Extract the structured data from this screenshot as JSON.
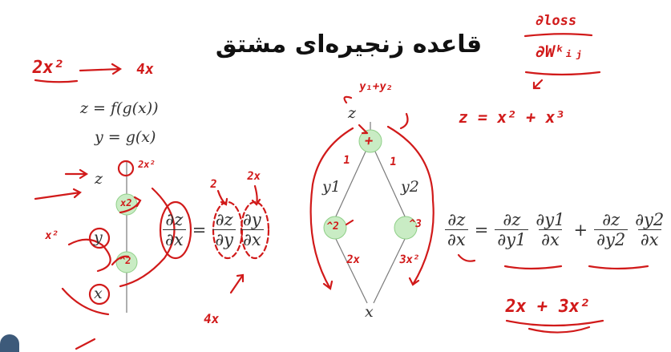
{
  "title": "قاعده زنجیره‌ای مشتق",
  "left_panel": {
    "eq1": "z = f(g(x))",
    "eq2": "y = g(x)",
    "node_z": "z",
    "node_y": "y",
    "node_x": "x",
    "op_upper": "x2",
    "op_lower": "^2",
    "chain": {
      "lhs_num": "∂z",
      "lhs_den": "∂x",
      "eq": "=",
      "f1_num": "∂z",
      "f1_den": "∂y",
      "f2_num": "∂y",
      "f2_den": "∂x"
    }
  },
  "center_graph": {
    "node_z": "z",
    "node_x": "x",
    "label_y1": "y1",
    "label_y2": "y2",
    "op_plus": "+",
    "op_sq": "^2",
    "op_cube": "^3"
  },
  "right_formula": {
    "lhs_num": "∂z",
    "lhs_den": "∂x",
    "eq": "=",
    "t1_num1": "∂z",
    "t1_den1": "∂y1",
    "t1_num2": "∂y1",
    "t1_den2": "∂x",
    "plus": "+",
    "t2_num1": "∂z",
    "t2_den1": "∂y2",
    "t2_num2": "∂y2",
    "t2_den2": "∂x"
  },
  "annotations": {
    "tl_2x2": "2x²",
    "tl_4x": "4x",
    "z_2x2": "2x²",
    "x2_label": "x²",
    "four_x_bottom": "4x",
    "two_a": "2",
    "two_x_a": "2x",
    "y1_plus_y2": "y₁+y₂",
    "one_left": "1",
    "one_right": "1",
    "two_x_edge": "2x",
    "three_x2_edge": "3x²",
    "z_eq": "z = x² + x³",
    "result": "2x + 3x²",
    "dloss_num": "∂loss",
    "dloss_den": "∂Wᵏᵢⱼ"
  },
  "colors": {
    "ink": "#d11a1a",
    "node_fill": "#c9ecc4",
    "node_stroke": "#8fcf88",
    "edge": "#7a7a7a"
  }
}
